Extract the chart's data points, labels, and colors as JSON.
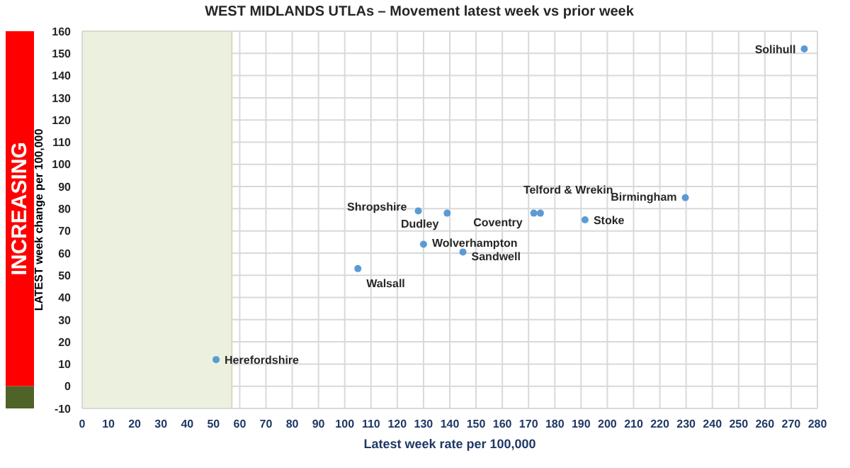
{
  "chart_data": {
    "type": "scatter",
    "title": "WEST MIDLANDS UTLAs – Movement latest week vs prior week",
    "xlabel": "Latest week rate per 100,000",
    "ylabel": "LATEST week change per 100,000",
    "x": [
      275,
      229.7,
      191.5,
      174.5,
      172,
      145,
      130,
      139,
      128,
      105,
      51
    ],
    "values": [
      152,
      85,
      75,
      78,
      78,
      60.5,
      64,
      78,
      79,
      53,
      12
    ],
    "color": "#5b9bd5",
    "marker": "circle",
    "xlim": [
      0,
      280
    ],
    "xticks": [
      0,
      10,
      20,
      30,
      40,
      50,
      60,
      70,
      80,
      90,
      100,
      110,
      120,
      130,
      140,
      150,
      160,
      170,
      180,
      190,
      200,
      210,
      220,
      230,
      240,
      250,
      260,
      270,
      280
    ],
    "ylim": [
      -10,
      160
    ],
    "yticks": [
      -10,
      0,
      10,
      20,
      30,
      40,
      50,
      60,
      70,
      80,
      90,
      100,
      110,
      120,
      130,
      140,
      150,
      160
    ],
    "grid": true,
    "bands": [
      {
        "axis": "x",
        "from": 0,
        "to": 57,
        "color": "#ebf1de"
      }
    ],
    "annotations": [
      "INCREASING",
      {
        "text": "Solihull",
        "x": 275,
        "y": 152
      },
      {
        "text": "Birmingham",
        "x": 229.7,
        "y": 85
      },
      {
        "text": "Stoke",
        "x": 191.5,
        "y": 75
      },
      {
        "text": "Telford & Wrekin",
        "x": 174.5,
        "y": 78
      },
      {
        "text": "Coventry",
        "x": 172,
        "y": 78
      },
      {
        "text": "Sandwell",
        "x": 145,
        "y": 60.5
      },
      {
        "text": "Wolverhampton",
        "x": 130,
        "y": 64
      },
      {
        "text": "Dudley",
        "x": 139,
        "y": 78
      },
      {
        "text": "Shropshire",
        "x": 128,
        "y": 79
      },
      {
        "text": "Walsall",
        "x": 105,
        "y": 53
      },
      {
        "text": "Herefordshire",
        "x": 51,
        "y": 12
      }
    ]
  }
}
